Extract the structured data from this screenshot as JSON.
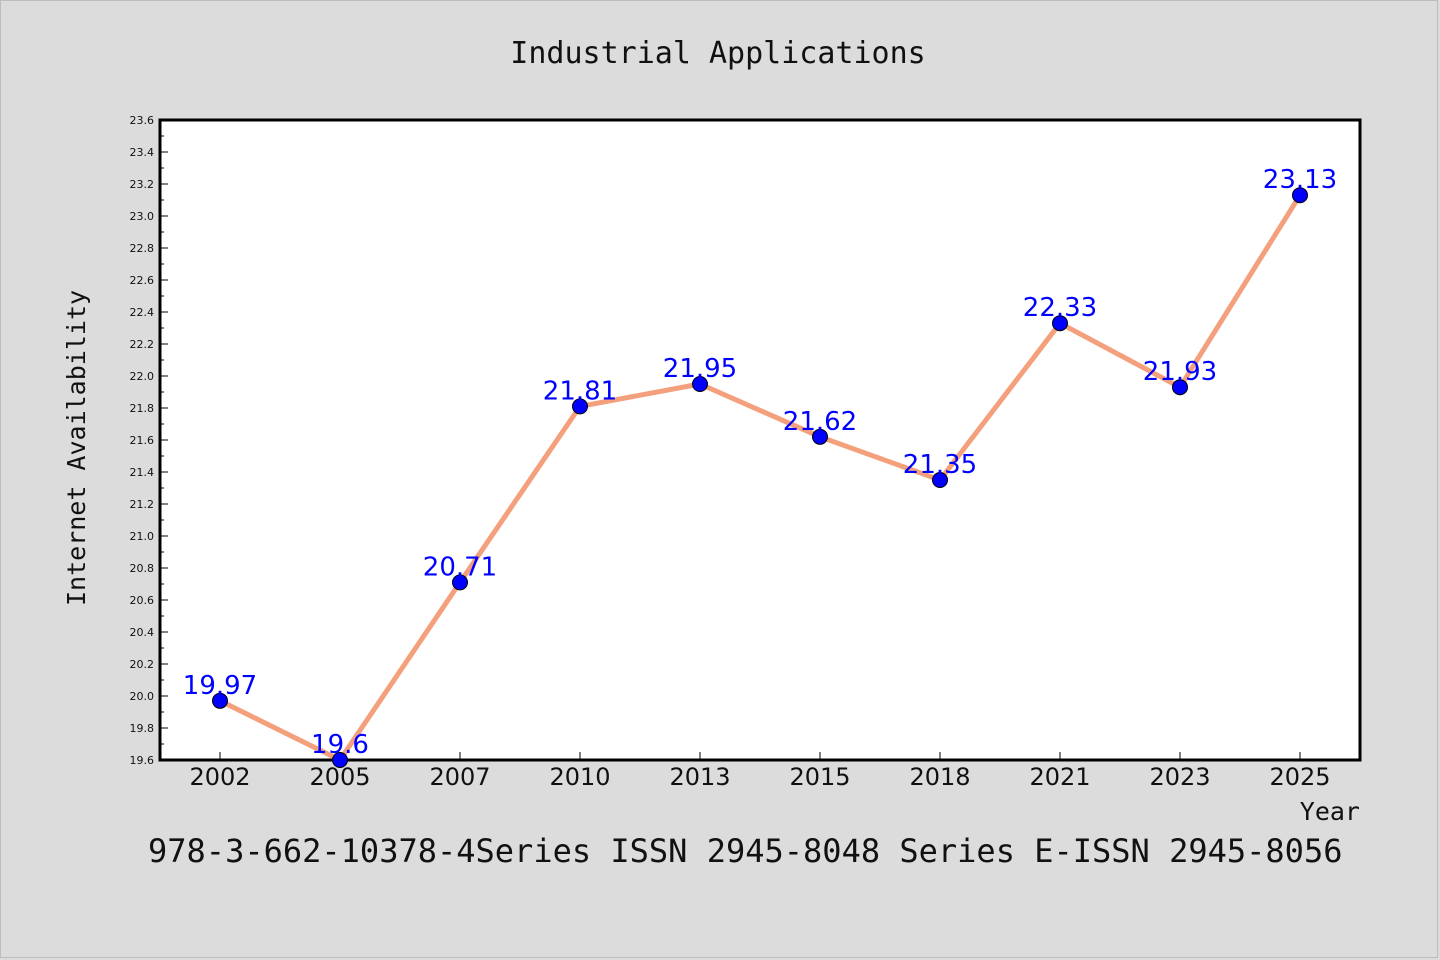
{
  "chart_data": {
    "type": "line",
    "title": "Industrial Applications",
    "xlabel": "Year",
    "ylabel": "Internet Availability",
    "categories": [
      "2002",
      "2005",
      "2007",
      "2010",
      "2013",
      "2015",
      "2018",
      "2021",
      "2023",
      "2025"
    ],
    "series": [
      {
        "values": [
          19.97,
          19.6,
          20.71,
          21.81,
          21.95,
          21.62,
          21.35,
          22.33,
          21.93,
          23.13
        ],
        "line_color": "#f4a07c",
        "marker_color": "#0000ff"
      }
    ],
    "data_labels": [
      "19.97",
      "19.6",
      "20.71",
      "21.81",
      "21.95",
      "21.62",
      "21.35",
      "22.33",
      "21.93",
      "23.13"
    ],
    "ylim": [
      19.6,
      23.6
    ],
    "yticks": [
      "19.6",
      "19.8",
      "20.0",
      "20.2",
      "20.4",
      "20.6",
      "20.8",
      "21.0",
      "21.2",
      "21.4",
      "21.6",
      "21.8",
      "22.0",
      "22.2",
      "22.4",
      "22.6",
      "22.8",
      "23.0",
      "23.2",
      "23.4",
      "23.6"
    ],
    "grid": false,
    "legend": "none"
  },
  "footer": "978-3-662-10378-4Series ISSN 2945-8048 Series E-ISSN 2945-8056"
}
